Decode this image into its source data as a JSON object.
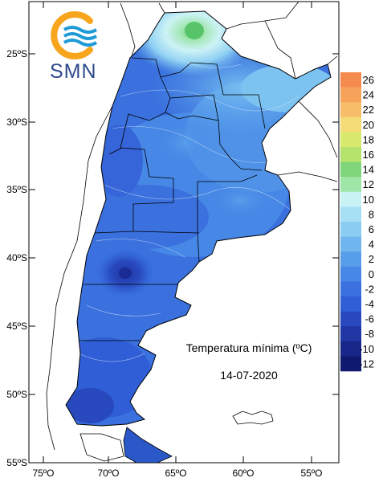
{
  "logo": {
    "text": "SMN",
    "colors": {
      "ring": "#f7a51c",
      "waves": "#1e9ad6",
      "text": "#2d4a8c"
    }
  },
  "map": {
    "title": "Temperatura mínima (ºC)",
    "date": "14-07-2020",
    "lat_labels": [
      "25ºS",
      "30ºS",
      "35ºS",
      "40ºS",
      "45ºS",
      "50ºS",
      "55ºS"
    ],
    "lon_labels": [
      "75ºO",
      "70ºO",
      "65ºO",
      "60ºO",
      "55ºO"
    ]
  },
  "legend": {
    "levels": [
      "26",
      "24",
      "22",
      "20",
      "18",
      "16",
      "14",
      "12",
      "10",
      "8",
      "6",
      "4",
      "2",
      "0",
      "-2",
      "-4",
      "-6",
      "-8",
      "-10",
      "-12"
    ],
    "colors": [
      "#f58a4e",
      "#f7a25a",
      "#f8bd68",
      "#f5dc78",
      "#d8ea6e",
      "#b4e26a",
      "#7fd67a",
      "#9ee6a8",
      "#c9f2f5",
      "#a7e0f5",
      "#8bcdf2",
      "#6fb6ee",
      "#579eea",
      "#4787e6",
      "#3a71de",
      "#2f5ed6",
      "#2849bd",
      "#1f36a3",
      "#172688",
      "#0f1970"
    ]
  }
}
